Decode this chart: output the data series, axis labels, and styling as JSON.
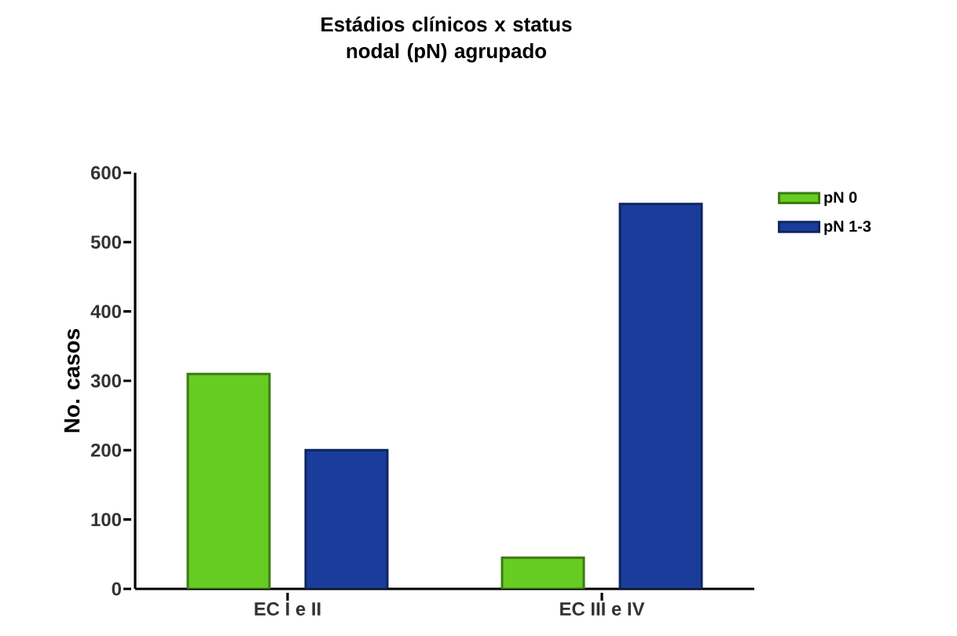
{
  "chart_data": {
    "type": "bar",
    "title": "Estádios clínicos x status nodal (pN) agrupado",
    "ylabel": "No. casos",
    "categories": [
      "EC I e II",
      "EC III e IV"
    ],
    "series": [
      {
        "name": "pN 0",
        "color": "#66cc22",
        "values": [
          310,
          45
        ]
      },
      {
        "name": "pN 1-3",
        "color": "#1a3d9c",
        "values": [
          200,
          555
        ]
      }
    ],
    "ylim": [
      0,
      600
    ],
    "yticks": [
      0,
      100,
      200,
      300,
      400,
      500,
      600
    ],
    "grid": false,
    "legend": "top right"
  }
}
